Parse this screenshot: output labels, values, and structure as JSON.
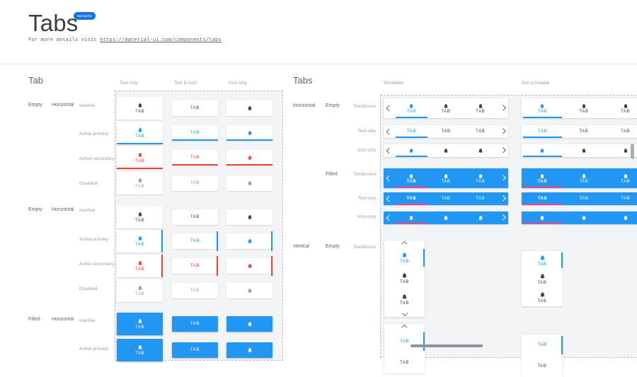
{
  "header": {
    "title": "Tabs",
    "badge": "Variants",
    "subtitle_prefix": "For more details visit",
    "link": "https://material-ui.com/components/tabs"
  },
  "tab_label": "TAB",
  "left": {
    "heading": "Tab",
    "columns": [
      "Text only",
      "Text & Icon",
      "Icon only"
    ],
    "group1": {
      "type": "Empty",
      "orientation": "Horizontal"
    },
    "group2": {
      "type": "Empty",
      "orientation": "Horizontal"
    },
    "group3": {
      "type": "Filled",
      "orientation": "Horizontal"
    },
    "states": [
      "Inactive",
      "Active primary",
      "Active secondary",
      "Disabled"
    ]
  },
  "right": {
    "heading": "Tabs",
    "columns": [
      "Scrollable",
      "Not scrollable"
    ],
    "group1": {
      "orientation": "Horizontal",
      "type": "Empty"
    },
    "group2": {
      "type": "Filled"
    },
    "group3": {
      "orientation": "Vertical",
      "type": "Empty"
    },
    "rows": [
      "Text&Icons",
      "Text only",
      "Icon only"
    ]
  },
  "colors": {
    "primary": "#2196f3",
    "secondary": "#f44336",
    "filled_active_underline": "#ff4081",
    "disabled": "#9e9e9e",
    "text": "#424242"
  }
}
